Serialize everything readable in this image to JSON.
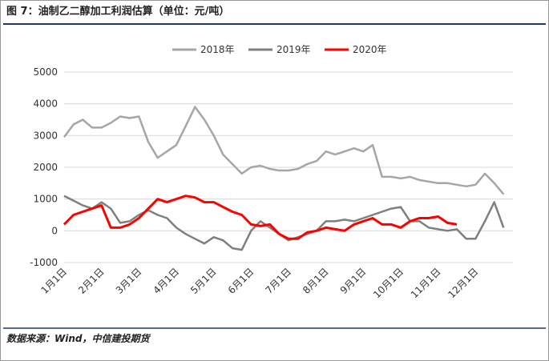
{
  "chart_data": {
    "type": "line",
    "title": "图 7：油制乙二醇加工利润估算（单位：元/吨）",
    "source": "数据来源：Wind，中信建投期货",
    "categories": [
      "1月1日",
      null,
      null,
      null,
      "2月1日",
      null,
      null,
      null,
      "3月1日",
      null,
      null,
      null,
      "4月1日",
      null,
      null,
      null,
      "5月1日",
      null,
      null,
      null,
      "6月1日",
      null,
      null,
      null,
      "7月1日",
      null,
      null,
      null,
      "8月1日",
      null,
      null,
      null,
      "9月1日",
      null,
      null,
      null,
      "10月1日",
      null,
      null,
      null,
      "11月1日",
      null,
      null,
      null,
      "12月1日",
      null,
      null,
      null
    ],
    "series": [
      {
        "name": "2018年",
        "color": "#a6a6a6",
        "values": [
          2950,
          3350,
          3500,
          3250,
          3250,
          3400,
          3600,
          3550,
          3600,
          2800,
          2300,
          2500,
          2700,
          3300,
          3900,
          3500,
          3000,
          2400,
          2100,
          1800,
          2000,
          2050,
          1950,
          1900,
          1900,
          1950,
          2100,
          2200,
          2500,
          2400,
          2500,
          2600,
          2500,
          2700,
          1700,
          1700,
          1650,
          1700,
          1600,
          1550,
          1500,
          1500,
          1450,
          1400,
          1450,
          1800,
          1500,
          1150
        ]
      },
      {
        "name": "2019年",
        "color": "#7f7f7f",
        "values": [
          1100,
          950,
          800,
          700,
          900,
          700,
          250,
          300,
          500,
          650,
          500,
          400,
          100,
          -100,
          -250,
          -400,
          -200,
          -300,
          -550,
          -600,
          0,
          300,
          100,
          -100,
          -300,
          -200,
          -100,
          0,
          300,
          300,
          350,
          300,
          400,
          500,
          600,
          700,
          750,
          300,
          300,
          100,
          50,
          0,
          50,
          -250,
          -250,
          300,
          900,
          100
        ]
      },
      {
        "name": "2020年",
        "color": "#ff0000",
        "values": [
          200,
          500,
          600,
          700,
          800,
          100,
          100,
          200,
          400,
          700,
          1000,
          900,
          1000,
          1100,
          1050,
          900,
          900,
          750,
          600,
          500,
          200,
          150,
          200,
          -100,
          -250,
          -250,
          -50,
          0,
          100,
          50,
          0,
          200,
          300,
          400,
          200,
          200,
          100,
          300,
          400,
          400,
          450,
          250,
          200,
          null,
          null,
          null,
          null,
          null
        ]
      }
    ],
    "ylim": [
      -1000,
      5000
    ],
    "yticks": [
      -1000,
      0,
      1000,
      2000,
      3000,
      4000,
      5000
    ],
    "grid": true,
    "legend": "top"
  }
}
